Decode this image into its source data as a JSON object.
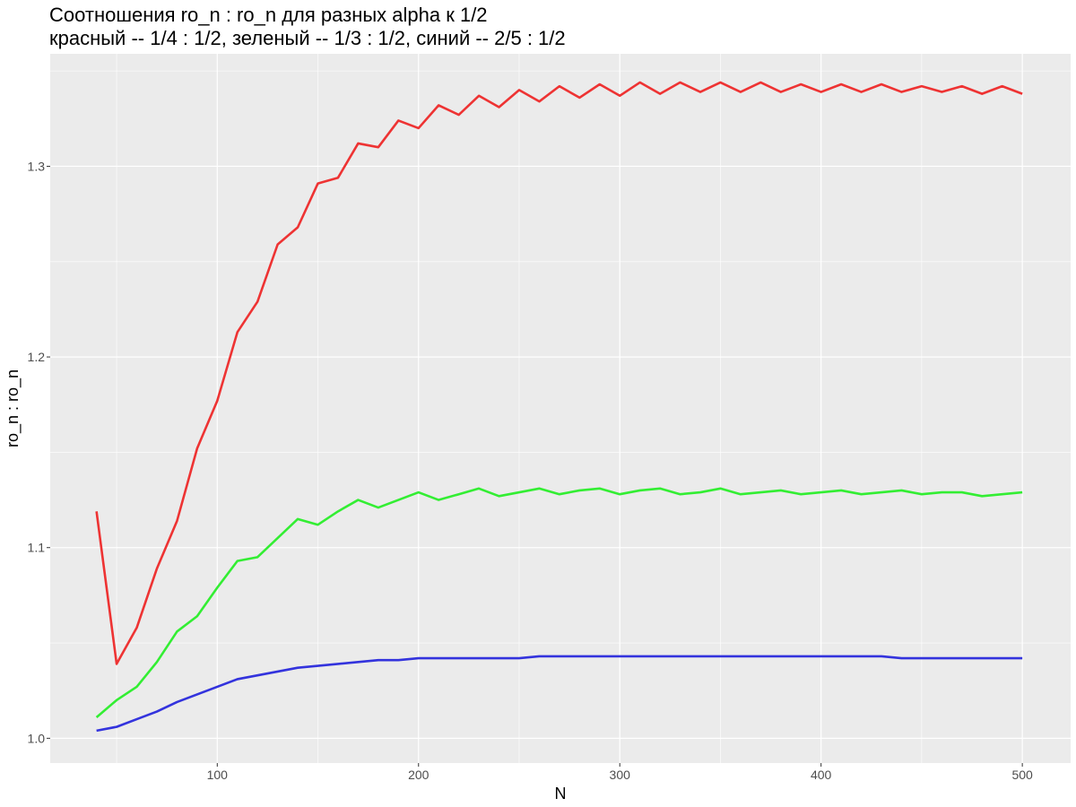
{
  "chart_data": {
    "type": "line",
    "title": "Соотношения ro_n : ro_n для разных alpha к 1/2",
    "subtitle": "красный -- 1/4 : 1/2, зеленый -- 1/3 : 1/2, синий -- 2/5 : 1/2",
    "xlabel": "N",
    "ylabel": "ro_n : ro_n",
    "xlim": [
      17,
      524
    ],
    "ylim": [
      0.987,
      1.359
    ],
    "x_ticks": [
      100,
      200,
      300,
      400,
      500
    ],
    "y_ticks": [
      1.0,
      1.1,
      1.2,
      1.3
    ],
    "x_tick_labels": [
      "100",
      "200",
      "300",
      "400",
      "500"
    ],
    "y_tick_labels": [
      "1.0",
      "1.1",
      "1.2",
      "1.3"
    ],
    "grid": true,
    "legend": "none",
    "x": [
      40,
      50,
      60,
      70,
      80,
      90,
      100,
      110,
      120,
      130,
      140,
      150,
      160,
      170,
      180,
      190,
      200,
      210,
      220,
      230,
      240,
      250,
      260,
      270,
      280,
      290,
      300,
      310,
      320,
      330,
      340,
      350,
      360,
      370,
      380,
      390,
      400,
      410,
      420,
      430,
      440,
      450,
      460,
      470,
      480,
      490,
      500
    ],
    "series": [
      {
        "color": "#ee3333",
        "values": [
          1.119,
          1.039,
          1.058,
          1.089,
          1.114,
          1.152,
          1.177,
          1.213,
          1.229,
          1.259,
          1.268,
          1.291,
          1.294,
          1.312,
          1.31,
          1.324,
          1.32,
          1.332,
          1.327,
          1.337,
          1.331,
          1.34,
          1.334,
          1.342,
          1.336,
          1.343,
          1.337,
          1.344,
          1.338,
          1.344,
          1.339,
          1.344,
          1.339,
          1.344,
          1.339,
          1.343,
          1.339,
          1.343,
          1.339,
          1.343,
          1.339,
          1.342,
          1.339,
          1.342,
          1.338,
          1.342,
          1.338
        ]
      },
      {
        "color": "#33ee33",
        "values": [
          1.011,
          1.02,
          1.027,
          1.04,
          1.056,
          1.064,
          1.079,
          1.093,
          1.095,
          1.105,
          1.115,
          1.112,
          1.119,
          1.125,
          1.121,
          1.125,
          1.129,
          1.125,
          1.128,
          1.131,
          1.127,
          1.129,
          1.131,
          1.128,
          1.13,
          1.131,
          1.128,
          1.13,
          1.131,
          1.128,
          1.129,
          1.131,
          1.128,
          1.129,
          1.13,
          1.128,
          1.129,
          1.13,
          1.128,
          1.129,
          1.13,
          1.128,
          1.129,
          1.129,
          1.127,
          1.128,
          1.129
        ]
      },
      {
        "color": "#3333dd",
        "values": [
          1.004,
          1.006,
          1.01,
          1.014,
          1.019,
          1.023,
          1.027,
          1.031,
          1.033,
          1.035,
          1.037,
          1.038,
          1.039,
          1.04,
          1.041,
          1.041,
          1.042,
          1.042,
          1.042,
          1.042,
          1.042,
          1.042,
          1.043,
          1.043,
          1.043,
          1.043,
          1.043,
          1.043,
          1.043,
          1.043,
          1.043,
          1.043,
          1.043,
          1.043,
          1.043,
          1.043,
          1.043,
          1.043,
          1.043,
          1.043,
          1.042,
          1.042,
          1.042,
          1.042,
          1.042,
          1.042,
          1.042
        ]
      }
    ]
  }
}
